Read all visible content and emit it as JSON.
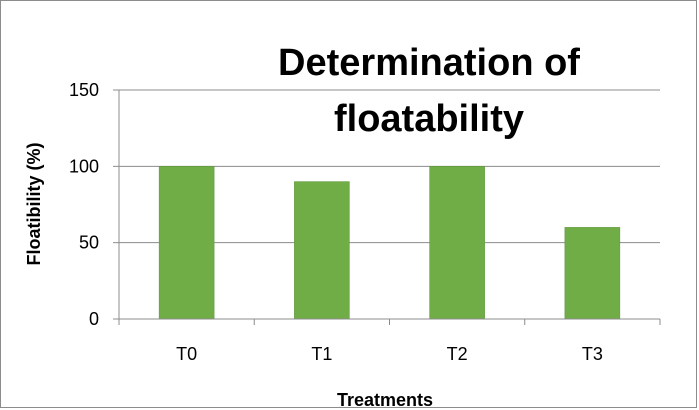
{
  "chart_data": {
    "type": "bar",
    "title_lines": [
      "Determination of",
      "floatability"
    ],
    "xlabel": "Treatments",
    "ylabel": "Floatibility (%)",
    "categories": [
      "T0",
      "T1",
      "T2",
      "T3"
    ],
    "values": [
      100,
      90,
      100,
      60
    ],
    "ylim": [
      0,
      150
    ],
    "yticks": [
      0,
      50,
      100,
      150
    ],
    "grid": true,
    "legend": "none",
    "bar_color": "#70ad47",
    "bar_edge_color": "#5a9236",
    "grid_color": "#8c8c8c"
  }
}
